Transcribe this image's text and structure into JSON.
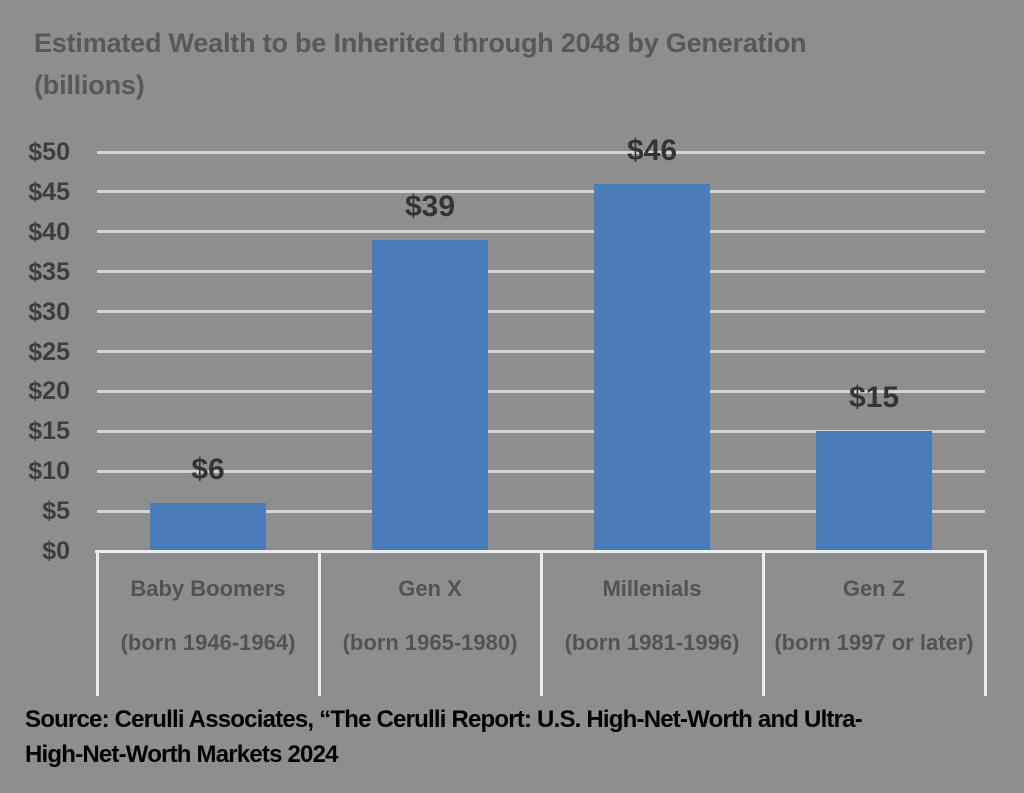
{
  "chart_data": {
    "type": "bar",
    "title": "Estimated Wealth to be Inherited through 2048 by Generation (billions)",
    "categories": [
      "Baby Boomers",
      "Gen X",
      "Millenials",
      "Gen Z"
    ],
    "category_sublabels": [
      "(born 1946-1964)",
      "(born 1965-1980)",
      "(born 1981-1996)",
      "(born 1997 or later)"
    ],
    "values": [
      6,
      39,
      46,
      15
    ],
    "value_labels": [
      "$6",
      "$39",
      "$46",
      "$15"
    ],
    "y_tick_labels": [
      "$0",
      "$5",
      "$10",
      "$15",
      "$20",
      "$25",
      "$30",
      "$35",
      "$40",
      "$45",
      "$50"
    ],
    "ylim": [
      0,
      50
    ],
    "y_tick_step": 5,
    "xlabel": "",
    "ylabel": "",
    "grid": true,
    "legend": false,
    "bar_color": "#4a7cba",
    "source_lines": [
      "Source: Cerulli Associates, “The Cerulli Report: U.S. High-Net-Worth and Ultra-",
      "High-Net-Worth Markets 2024"
    ]
  },
  "colors": {
    "background": "#8e8e8e",
    "title_text": "#585858",
    "tick_text": "#3e3e3e",
    "value_label_text": "#343434",
    "category_text": "#535353",
    "gridline": "#d2d2d2",
    "axis_line": "#ececec",
    "bar": "#4a7cba",
    "source_text": "#000000"
  }
}
